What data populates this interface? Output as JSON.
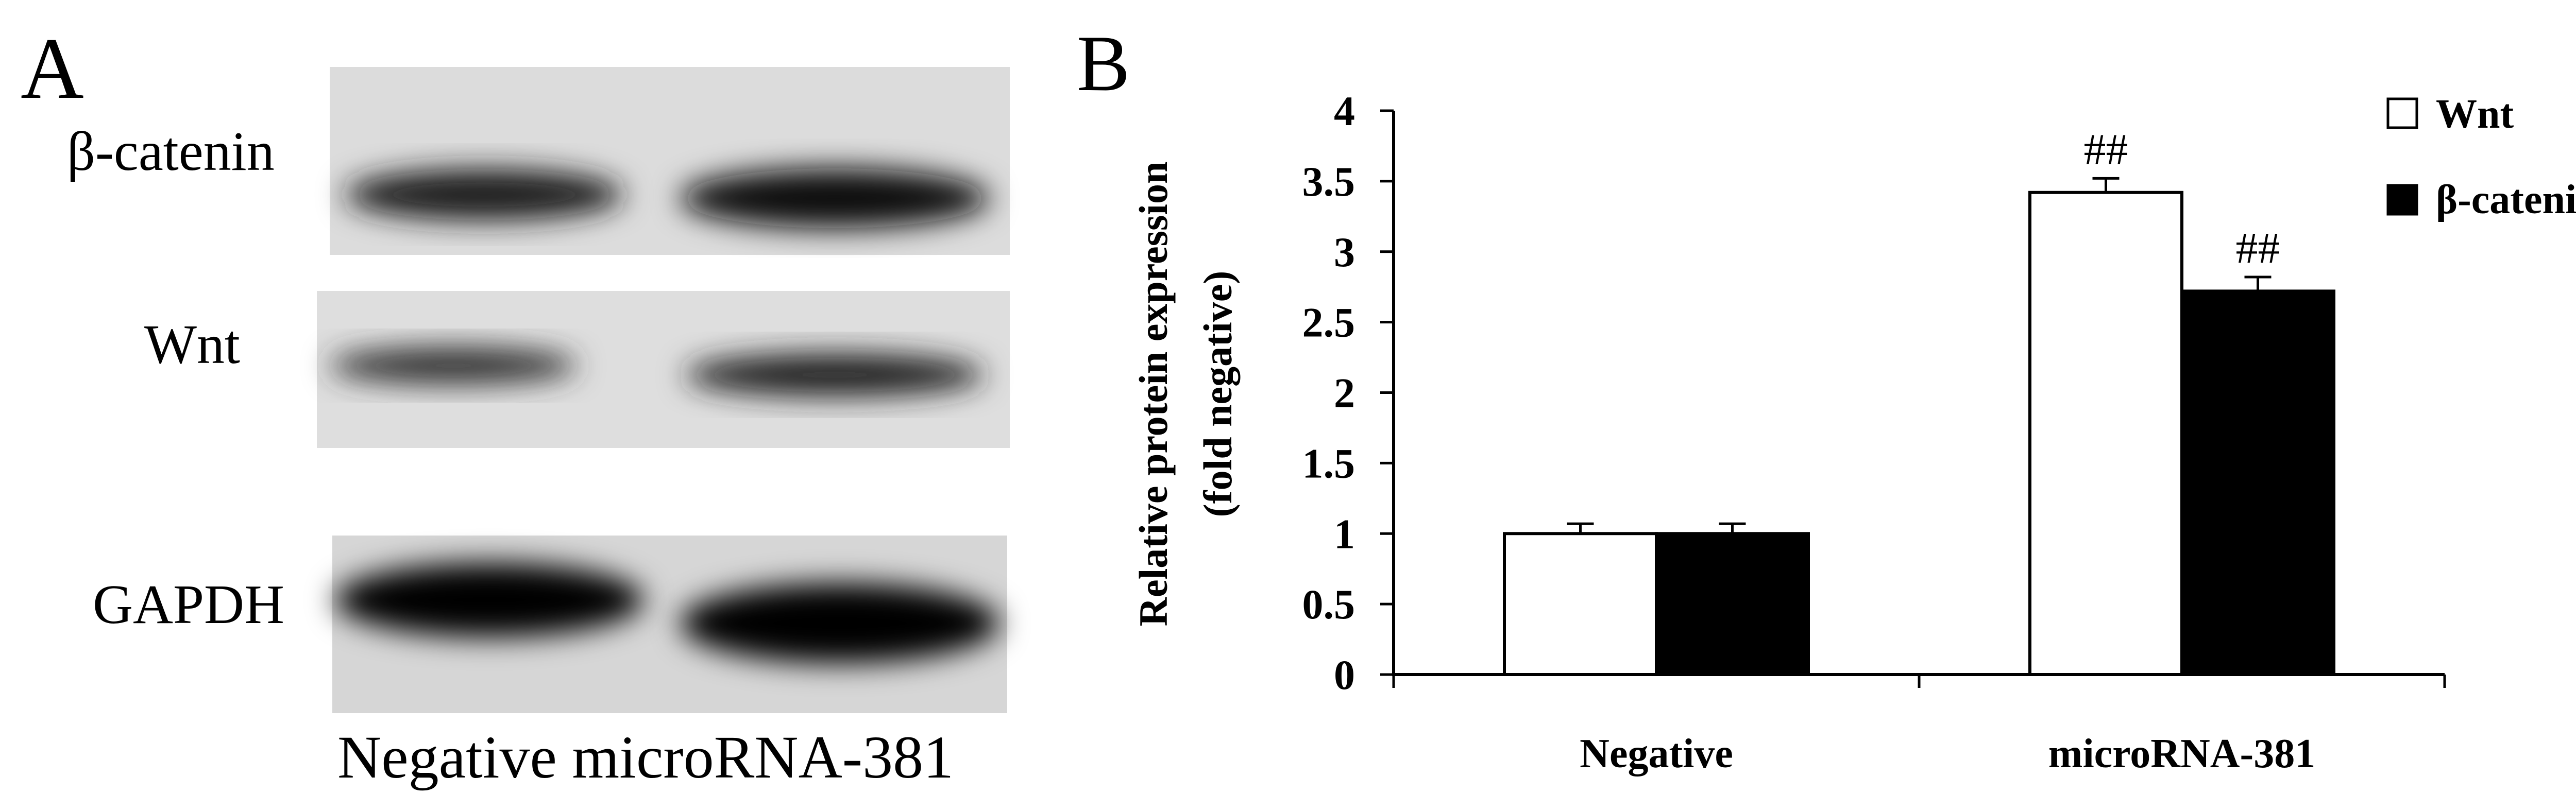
{
  "panel_a": {
    "label": "A",
    "rows": [
      {
        "name": "β-catenin",
        "bands": [
          0.85,
          0.95
        ]
      },
      {
        "name": "Wnt",
        "bands": [
          0.55,
          0.72
        ]
      },
      {
        "name": "GAPDH",
        "bands": [
          1.0,
          1.0
        ]
      }
    ],
    "lanes_caption": "Negative microRNA-381"
  },
  "chart_data": {
    "panel_label": "B",
    "type": "bar",
    "categories": [
      "Negative",
      "microRNA-381"
    ],
    "series": [
      {
        "name": "Wnt",
        "values": [
          1.0,
          3.42
        ],
        "errors": [
          0.07,
          0.1
        ],
        "color": "#ffffff"
      },
      {
        "name": "β-catenin",
        "values": [
          1.0,
          2.72
        ],
        "errors": [
          0.07,
          0.1
        ],
        "color": "#000000"
      }
    ],
    "annotations": [
      {
        "category": "microRNA-381",
        "series": "Wnt",
        "text": "##"
      },
      {
        "category": "microRNA-381",
        "series": "β-catenin",
        "text": "##"
      }
    ],
    "ylabel_line1": "Relative protein expression",
    "ylabel_line2": "(fold negative)",
    "xlabel": "",
    "ylim": [
      0,
      4
    ],
    "yticks": [
      "0",
      "0.5",
      "1",
      "1.5",
      "2",
      "2.5",
      "3",
      "3.5",
      "4"
    ],
    "ytick_values": [
      0,
      0.5,
      1,
      1.5,
      2,
      2.5,
      3,
      3.5,
      4
    ],
    "grid": false,
    "legend_position": "top-right"
  }
}
